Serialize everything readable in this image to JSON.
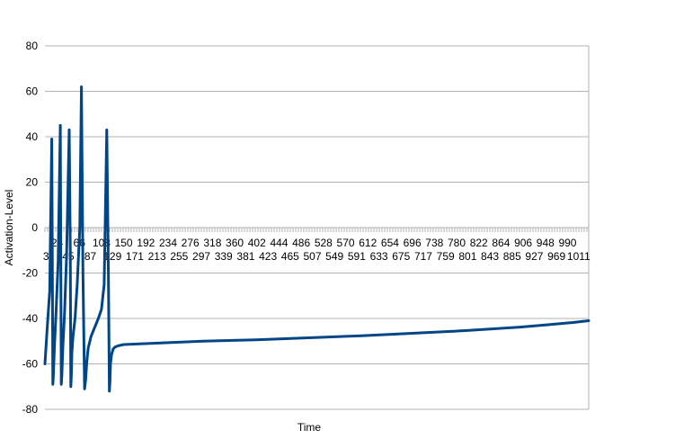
{
  "chart_data": {
    "type": "line",
    "xlabel": "Time",
    "ylabel": "Activation-Level",
    "ylim": [
      -80,
      80
    ],
    "yticks": [
      -80,
      -60,
      -40,
      -20,
      0,
      20,
      40,
      60,
      80
    ],
    "xlim": [
      1,
      1030
    ],
    "xtick_labels_upper": [
      "24",
      "66",
      "108",
      "150",
      "192",
      "234",
      "276",
      "318",
      "360",
      "402",
      "444",
      "486",
      "528",
      "570",
      "612",
      "654",
      "696",
      "738",
      "780",
      "822",
      "864",
      "906",
      "948",
      "990"
    ],
    "xtick_labels_lower": [
      "3",
      "45",
      "87",
      "129",
      "171",
      "213",
      "255",
      "297",
      "339",
      "381",
      "423",
      "465",
      "507",
      "549",
      "591",
      "633",
      "675",
      "717",
      "759",
      "801",
      "843",
      "885",
      "927",
      "969",
      "1011"
    ],
    "grid": true,
    "legend": "none",
    "series": [
      {
        "color": "#004586",
        "x": [
          1,
          5,
          10,
          14,
          15,
          16,
          17,
          19,
          22,
          26,
          30,
          31,
          32,
          33,
          35,
          38,
          42,
          47,
          49,
          50,
          51,
          52,
          54,
          58,
          62,
          67,
          70,
          73,
          76,
          78,
          80,
          82,
          83,
          85,
          88,
          95,
          102,
          108,
          113,
          118,
          121,
          123,
          124,
          125,
          127,
          130,
          134,
          140,
          150,
          170,
          200,
          250,
          300,
          400,
          500,
          600,
          700,
          800,
          900,
          950,
          1000,
          1030
        ],
        "y": [
          -60,
          -45,
          -28,
          39,
          -12,
          -69,
          -65,
          -52,
          -38,
          -15,
          45,
          -10,
          -69,
          -65,
          -52,
          -38,
          -12,
          43,
          -10,
          -70,
          -65,
          -55,
          -48,
          -40,
          -25,
          0,
          62,
          -20,
          -71,
          -67,
          -60,
          -55,
          -53,
          -51,
          -48,
          -44,
          -40,
          -36,
          -25,
          43,
          -20,
          -72,
          -68,
          -60,
          -56,
          -53.5,
          -52.5,
          -52,
          -51.5,
          -51.3,
          -51,
          -50.5,
          -50,
          -49.4,
          -48.5,
          -47.6,
          -46.5,
          -45.3,
          -43.8,
          -42.8,
          -41.8,
          -41
        ]
      }
    ]
  }
}
